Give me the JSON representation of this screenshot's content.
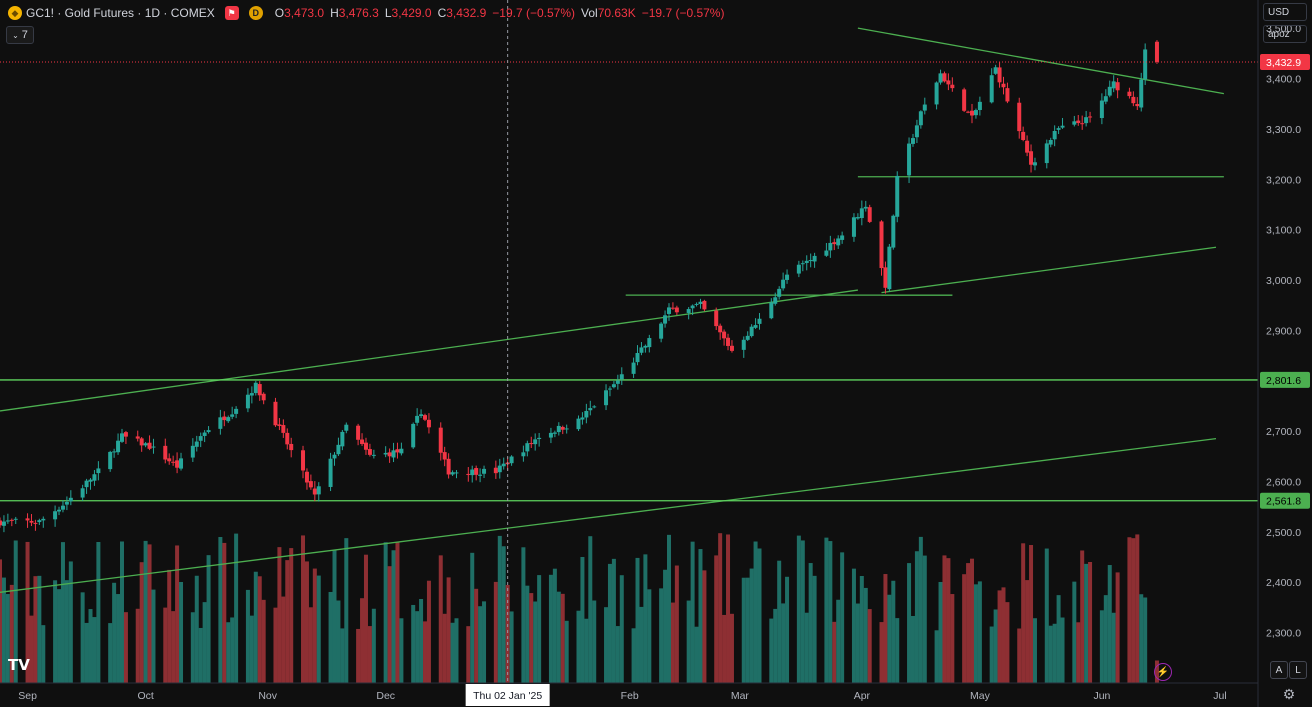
{
  "header": {
    "title": "GC1! · Gold Futures · 1D · COMEX",
    "badge": "D",
    "ohlc": [
      {
        "k": "O",
        "v": "3,473.0"
      },
      {
        "k": "H",
        "v": "3,476.3"
      },
      {
        "k": "L",
        "v": "3,429.0"
      },
      {
        "k": "C",
        "v": "3,432.9"
      }
    ],
    "change": "−19.7 (−0.57%)",
    "vol_label": "Vol",
    "vol_value": "70.63K",
    "vol_change": "−19.7 (−0.57%)",
    "indicators_count": "7"
  },
  "scale_controls": {
    "currency": "USD",
    "unit": "apoz"
  },
  "buttons": {
    "auto": "A",
    "log": "L"
  },
  "colors": {
    "up": "#26a69a",
    "down": "#f23645",
    "vol_up": "#1f6f66",
    "vol_down": "#8e2f33",
    "line": "#4caf50",
    "bg": "#0f0f0f"
  },
  "chart_data": {
    "type": "candlestick",
    "y_range": [
      2190,
      3540
    ],
    "y_ticks": [
      {
        "label": "3,500.0",
        "value": 3500
      },
      {
        "label": "3,400.0",
        "value": 3400
      },
      {
        "label": "3,300.0",
        "value": 3300
      },
      {
        "label": "3,200.0",
        "value": 3200
      },
      {
        "label": "3,100.0",
        "value": 3100
      },
      {
        "label": "3,000.0",
        "value": 3000
      },
      {
        "label": "2,900.0",
        "value": 2900
      },
      {
        "label": "2,700.0",
        "value": 2700
      },
      {
        "label": "2,600.0",
        "value": 2600
      },
      {
        "label": "2,500.0",
        "value": 2500
      },
      {
        "label": "2,400.0",
        "value": 2400
      },
      {
        "label": "2,300.0",
        "value": 2300
      }
    ],
    "x_labels": [
      "Sep",
      "Oct",
      "Nov",
      "Dec",
      "Feb",
      "Mar",
      "Apr",
      "May",
      "Jun",
      "Jul"
    ],
    "crosshair_label": "Thu 02 Jan '25",
    "price_labels": [
      {
        "label": "3,432.9",
        "value": 3432.9,
        "type": "last"
      },
      {
        "label": "2,801.6",
        "value": 2801.6,
        "type": "level"
      },
      {
        "label": "2,561.8",
        "value": 2561.8,
        "type": "level"
      }
    ],
    "anchors": [
      [
        "2024-08-26",
        2520
      ],
      [
        "2024-09-05",
        2520
      ],
      [
        "2024-09-12",
        2560
      ],
      [
        "2024-09-20",
        2620
      ],
      [
        "2024-09-26",
        2690
      ],
      [
        "2024-10-03",
        2670
      ],
      [
        "2024-10-10",
        2630
      ],
      [
        "2024-10-17",
        2700
      ],
      [
        "2024-10-24",
        2740
      ],
      [
        "2024-10-30",
        2790
      ],
      [
        "2024-11-06",
        2690
      ],
      [
        "2024-11-14",
        2570
      ],
      [
        "2024-11-22",
        2710
      ],
      [
        "2024-11-28",
        2650
      ],
      [
        "2024-12-06",
        2660
      ],
      [
        "2024-12-11",
        2740
      ],
      [
        "2024-12-18",
        2620
      ],
      [
        "2024-12-30",
        2620
      ],
      [
        "2025-01-10",
        2690
      ],
      [
        "2025-01-20",
        2720
      ],
      [
        "2025-01-30",
        2800
      ],
      [
        "2025-02-07",
        2880
      ],
      [
        "2025-02-12",
        2940
      ],
      [
        "2025-02-20",
        2950
      ],
      [
        "2025-02-28",
        2860
      ],
      [
        "2025-03-07",
        2920
      ],
      [
        "2025-03-14",
        3010
      ],
      [
        "2025-03-20",
        3040
      ],
      [
        "2025-03-28",
        3090
      ],
      [
        "2025-04-03",
        3150
      ],
      [
        "2025-04-08",
        2990
      ],
      [
        "2025-04-11",
        3200
      ],
      [
        "2025-04-17",
        3330
      ],
      [
        "2025-04-22",
        3410
      ],
      [
        "2025-04-30",
        3320
      ],
      [
        "2025-05-06",
        3420
      ],
      [
        "2025-05-15",
        3230
      ],
      [
        "2025-05-22",
        3300
      ],
      [
        "2025-05-30",
        3320
      ],
      [
        "2025-06-05",
        3390
      ],
      [
        "2025-06-11",
        3350
      ],
      [
        "2025-06-13",
        3452
      ],
      [
        "2025-06-16",
        3433
      ]
    ],
    "trend_lines": [
      {
        "name": "upper-channel",
        "from": [
          "2024-08-26",
          2740
        ],
        "to": [
          "2025-04-01",
          2980
        ]
      },
      {
        "name": "lower-channel",
        "from": [
          "2024-08-26",
          2380
        ],
        "to": [
          "2025-07-01",
          2685
        ]
      },
      {
        "name": "mid-support",
        "from": [
          "2025-04-07",
          2975
        ],
        "to": [
          "2025-07-01",
          3065
        ]
      },
      {
        "name": "descending-resistance",
        "from": [
          "2025-04-01",
          3500
        ],
        "to": [
          "2025-07-03",
          3370
        ]
      },
      {
        "name": "support-3200",
        "from": [
          "2025-04-01",
          3205
        ],
        "to": [
          "2025-07-03",
          3205
        ]
      },
      {
        "name": "resistance-2970-top",
        "from": [
          "2025-02-01",
          2970
        ],
        "to": [
          "2025-04-25",
          2970
        ]
      },
      {
        "name": "resistance-2970-bottom",
        "from": [
          "2025-04-07",
          2970
        ],
        "to": [
          "2025-04-25",
          2970
        ]
      }
    ]
  }
}
